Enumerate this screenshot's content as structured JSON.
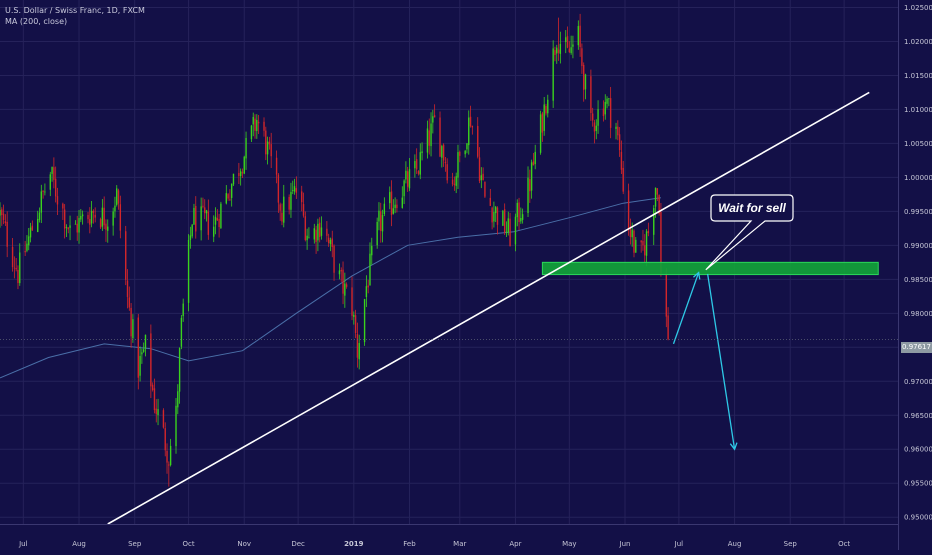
{
  "header": {
    "symbol_line": "U.S. Dollar / Swiss Franc, 1D, FXCM",
    "indicator_line": "MA (200, close)"
  },
  "price_tag": "0.97617",
  "chart_data": {
    "type": "candlestick",
    "symbol": "U.S. Dollar / Swiss Franc",
    "interval": "1D",
    "source": "FXCM",
    "x_labels": [
      "Jul",
      "Aug",
      "Sep",
      "Oct",
      "Nov",
      "Dec",
      "2019",
      "Feb",
      "Mar",
      "Apr",
      "May",
      "Jun",
      "Jul",
      "Aug",
      "Sep",
      "Oct"
    ],
    "x_range": [
      "2018-06-18",
      "2019-10-31"
    ],
    "y_ticks": [
      "0.95000",
      "0.95500",
      "0.96000",
      "0.96500",
      "0.97000",
      "0.97500",
      "0.98000",
      "0.98500",
      "0.99000",
      "0.99500",
      "1.00000",
      "1.00500",
      "1.01000",
      "1.01500",
      "1.02000",
      "1.02500"
    ],
    "ylim": [
      0.949,
      1.0261
    ],
    "last_price": 0.97617,
    "price_path": [
      [
        "2018-06-18",
        0.9945
      ],
      [
        "2018-06-28",
        0.986
      ],
      [
        "2018-07-09",
        0.995
      ],
      [
        "2018-07-16",
        1.0005
      ],
      [
        "2018-07-27",
        0.992
      ],
      [
        "2018-08-08",
        0.995
      ],
      [
        "2018-08-17",
        0.994
      ],
      [
        "2018-08-22",
        0.9975
      ],
      [
        "2018-08-28",
        0.982
      ],
      [
        "2018-09-03",
        0.972
      ],
      [
        "2018-09-07",
        0.975
      ],
      [
        "2018-09-12",
        0.967
      ],
      [
        "2018-09-17",
        0.962
      ],
      [
        "2018-09-20",
        0.959
      ],
      [
        "2018-09-24",
        0.965
      ],
      [
        "2018-09-27",
        0.978
      ],
      [
        "2018-10-03",
        0.994
      ],
      [
        "2018-10-15",
        0.993
      ],
      [
        "2018-10-24",
        0.9985
      ],
      [
        "2018-11-02",
        1.004
      ],
      [
        "2018-11-08",
        1.0085
      ],
      [
        "2018-11-13",
        1.005
      ],
      [
        "2018-11-22",
        0.995
      ],
      [
        "2018-11-30",
        0.998
      ],
      [
        "2018-12-07",
        0.991
      ],
      [
        "2018-12-14",
        0.9935
      ],
      [
        "2018-12-24",
        0.985
      ],
      [
        "2018-12-31",
        0.981
      ],
      [
        "2019-01-03",
        0.9745
      ],
      [
        "2019-01-08",
        0.984
      ],
      [
        "2019-01-15",
        0.993
      ],
      [
        "2019-01-24",
        0.997
      ],
      [
        "2019-02-05",
        1.001
      ],
      [
        "2019-02-15",
        1.008
      ],
      [
        "2019-02-25",
        0.999
      ],
      [
        "2019-03-07",
        1.009
      ],
      [
        "2019-03-15",
        0.997
      ],
      [
        "2019-03-22",
        0.9945
      ],
      [
        "2019-03-29",
        0.9915
      ],
      [
        "2019-04-08",
        0.998
      ],
      [
        "2019-04-17",
        1.01
      ],
      [
        "2019-04-24",
        1.021
      ],
      [
        "2019-04-30",
        1.018
      ],
      [
        "2019-05-06",
        1.0205
      ],
      [
        "2019-05-13",
        1.0075
      ],
      [
        "2019-05-21",
        1.0115
      ],
      [
        "2019-05-27",
        1.0075
      ],
      [
        "2019-06-03",
        0.993
      ],
      [
        "2019-06-07",
        0.989
      ],
      [
        "2019-06-10",
        0.9885
      ],
      [
        "2019-06-14",
        0.992
      ],
      [
        "2019-06-18",
        0.999
      ],
      [
        "2019-06-20",
        0.9965
      ],
      [
        "2019-06-21",
        0.9855
      ],
      [
        "2019-06-25",
        0.9765
      ]
    ],
    "extremes": {
      "low_2018_09": 0.9545,
      "low_2019_01": 0.972,
      "high_2019_04": 1.0235
    },
    "moving_average": {
      "name": "MA (200, close)",
      "values": [
        [
          "2018-06-18",
          0.9705
        ],
        [
          "2018-07-15",
          0.9735
        ],
        [
          "2018-08-15",
          0.9755
        ],
        [
          "2018-09-10",
          0.9748
        ],
        [
          "2018-10-01",
          0.973
        ],
        [
          "2018-10-31",
          0.9745
        ],
        [
          "2018-11-30",
          0.98
        ],
        [
          "2018-12-31",
          0.9855
        ],
        [
          "2019-01-31",
          0.99
        ],
        [
          "2019-02-28",
          0.9912
        ],
        [
          "2019-03-31",
          0.992
        ],
        [
          "2019-04-30",
          0.994
        ],
        [
          "2019-05-31",
          0.9962
        ],
        [
          "2019-06-21",
          0.997
        ]
      ],
      "color": "#4a6fa8"
    },
    "trendline": {
      "from": [
        "2018-08-17",
        0.949
      ],
      "to": [
        "2019-10-15",
        1.0125
      ],
      "color": "#ffffff"
    },
    "zone": {
      "from_date": "2019-04-16",
      "to_date": "2019-10-20",
      "price_low": 0.9857,
      "price_high": 0.9875,
      "color": "#12a33a"
    },
    "projection": {
      "points": [
        [
          "2019-06-28",
          0.9755
        ],
        [
          "2019-07-12",
          0.986
        ],
        [
          "2019-07-17",
          0.9858
        ],
        [
          "2019-08-01",
          0.96
        ]
      ],
      "color": "#2ec9e6"
    },
    "annotation": {
      "text": "Wait for sell",
      "anchor": [
        "2019-07-16",
        0.9864
      ]
    },
    "colors": {
      "background": "#131047",
      "up": "#3ad31d",
      "down": "#d3262a",
      "grid": "#25225a",
      "axis_text": "#c6c6d6"
    }
  }
}
